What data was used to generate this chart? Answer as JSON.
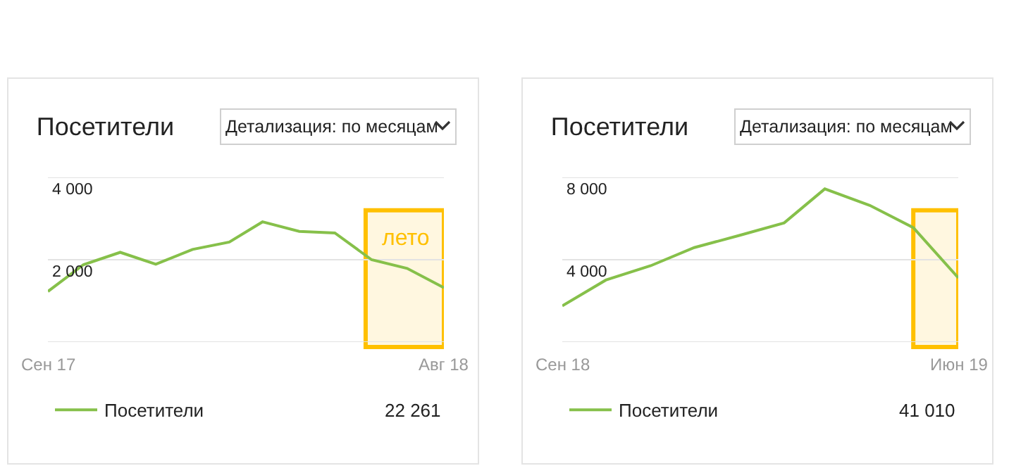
{
  "chart_data": [
    {
      "type": "line",
      "title": "Посетители",
      "annotations": [
        "Детализация: по месяцам",
        "22 261"
      ],
      "x": [
        "2017-09",
        "2017-10",
        "2017-11",
        "2017-12",
        "2018-01",
        "2018-02",
        "2018-03",
        "2018-04",
        "2018-05",
        "2018-06",
        "2018-07",
        "2018-08"
      ],
      "series": [
        {
          "name": "Посетители",
          "color": "#86c04a",
          "values": [
            1230,
            1880,
            2180,
            1890,
            2250,
            2430,
            2920,
            2690,
            2650,
            2000,
            1790,
            1320
          ]
        }
      ],
      "xlim": [
        "2017-09",
        "2018-08"
      ],
      "xticks": [
        {
          "value": "2017-09",
          "label": "Сен 17"
        },
        {
          "value": "2018-08",
          "label": "Авг 18"
        }
      ],
      "ylim": [
        0,
        4000
      ],
      "yticks": [
        {
          "value": 0,
          "label": null
        },
        {
          "value": 2000,
          "label": "2 000"
        },
        {
          "value": 4000,
          "label": "4 000"
        }
      ],
      "bands": [
        {
          "axis": "x",
          "from": "2018-05-27",
          "to": "2018-08",
          "label": "лето",
          "color": "#ffc000"
        }
      ],
      "grid": "y",
      "legend": "bottom left",
      "marker": "none",
      "line_style": "solid"
    },
    {
      "type": "line",
      "title": "Посетители",
      "annotations": [
        "Детализация: по месяцам",
        "41 010"
      ],
      "x": [
        "2018-09",
        "2018-10",
        "2018-11",
        "2018-12",
        "2019-01",
        "2019-02",
        "2019-03",
        "2019-04",
        "2019-05",
        "2019-06"
      ],
      "series": [
        {
          "name": "Посетители",
          "color": "#86c04a",
          "values": [
            1760,
            3010,
            3710,
            4590,
            5180,
            5790,
            7440,
            6640,
            5560,
            3120
          ]
        }
      ],
      "xlim": [
        "2018-09",
        "2019-06"
      ],
      "xticks": [
        {
          "value": "2018-09",
          "label": "Сен 18"
        },
        {
          "value": "2019-06",
          "label": "Июн 19"
        }
      ],
      "ylim": [
        0,
        8000
      ],
      "yticks": [
        {
          "value": 0,
          "label": null
        },
        {
          "value": 4000,
          "label": "4 000"
        },
        {
          "value": 8000,
          "label": "8 000"
        }
      ],
      "bands": [
        {
          "axis": "x",
          "from": "2019-05",
          "to": "2019-06",
          "label": null,
          "color": "#ffc000"
        }
      ],
      "grid": "y",
      "legend": "bottom left",
      "marker": "none",
      "line_style": "solid"
    }
  ]
}
